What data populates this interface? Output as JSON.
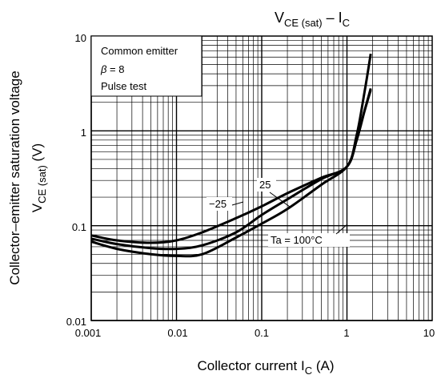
{
  "chart_data": {
    "type": "line",
    "title": {
      "main": "V",
      "main_sub": "CE (sat)",
      "sep": " – ",
      "main2": "I",
      "main2_sub": "C"
    },
    "xlabel": {
      "text": "Collector current   I",
      "sub": "C",
      "unit": "(A)"
    },
    "ylabel": {
      "line1": "Collector–emitter saturation voltage",
      "line2_main": "V",
      "line2_sub": "CE (sat)",
      "unit": "(V)"
    },
    "x_scale": "log",
    "y_scale": "log",
    "xlim": [
      0.001,
      10
    ],
    "ylim": [
      0.01,
      10
    ],
    "x_ticks": [
      "0.001",
      "0.01",
      "0.1",
      "1",
      "10"
    ],
    "y_ticks": [
      "0.01",
      "0.1",
      "1",
      "10"
    ],
    "grid": true,
    "legend_box": {
      "line1": "Common emitter",
      "line2_sym": "β",
      "line2_rest": " = 8",
      "line3": "Pulse test"
    },
    "series": [
      {
        "label": "Ta = 100°C",
        "points": [
          [
            0.001,
            0.068
          ],
          [
            0.002,
            0.057
          ],
          [
            0.005,
            0.05
          ],
          [
            0.01,
            0.048
          ],
          [
            0.02,
            0.05
          ],
          [
            0.05,
            0.075
          ],
          [
            0.1,
            0.105
          ],
          [
            0.2,
            0.15
          ],
          [
            0.5,
            0.27
          ],
          [
            1.0,
            0.42
          ],
          [
            1.3,
            0.8
          ],
          [
            1.6,
            1.6
          ],
          [
            1.9,
            2.8
          ]
        ]
      },
      {
        "label": "25",
        "points": [
          [
            0.001,
            0.073
          ],
          [
            0.002,
            0.064
          ],
          [
            0.005,
            0.058
          ],
          [
            0.01,
            0.057
          ],
          [
            0.02,
            0.062
          ],
          [
            0.05,
            0.085
          ],
          [
            0.1,
            0.13
          ],
          [
            0.2,
            0.19
          ],
          [
            0.5,
            0.31
          ],
          [
            1.0,
            0.42
          ],
          [
            1.3,
            0.8
          ],
          [
            1.6,
            1.6
          ],
          [
            1.9,
            2.7
          ]
        ]
      },
      {
        "label": "−25",
        "points": [
          [
            0.001,
            0.079
          ],
          [
            0.002,
            0.07
          ],
          [
            0.005,
            0.066
          ],
          [
            0.01,
            0.07
          ],
          [
            0.02,
            0.085
          ],
          [
            0.05,
            0.12
          ],
          [
            0.1,
            0.16
          ],
          [
            0.2,
            0.22
          ],
          [
            0.5,
            0.32
          ],
          [
            1.0,
            0.42
          ],
          [
            1.3,
            0.9
          ],
          [
            1.6,
            2.5
          ],
          [
            1.9,
            6.5
          ]
        ]
      }
    ]
  }
}
